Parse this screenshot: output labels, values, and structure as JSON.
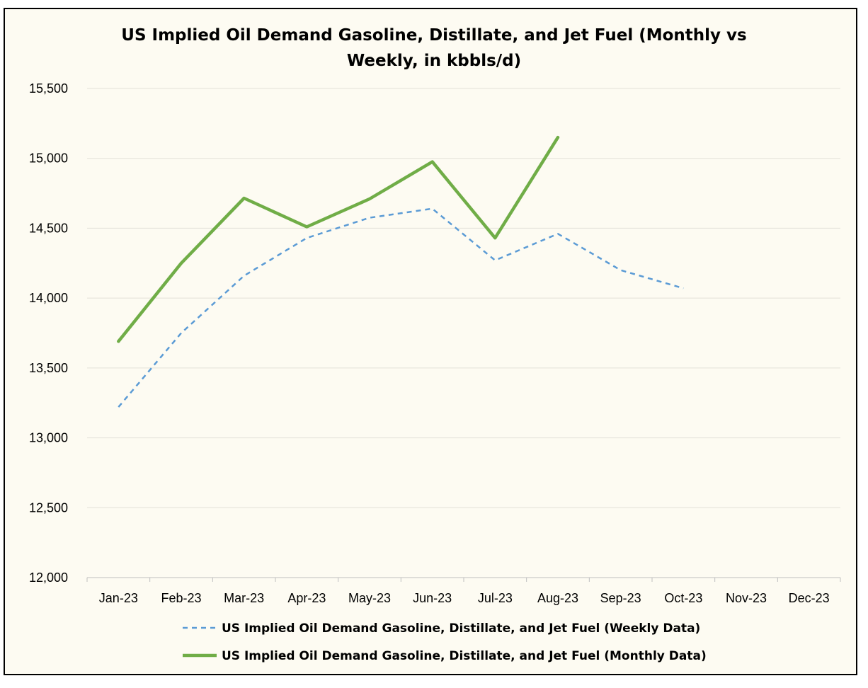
{
  "chart_data": {
    "type": "line",
    "title_lines": [
      "US Implied Oil Demand Gasoline, Distillate, and Jet Fuel (Monthly vs",
      "Weekly, in kbbls/d)"
    ],
    "categories": [
      "Jan-23",
      "Feb-23",
      "Mar-23",
      "Apr-23",
      "May-23",
      "Jun-23",
      "Jul-23",
      "Aug-23",
      "Sep-23",
      "Oct-23",
      "Nov-23",
      "Dec-23"
    ],
    "ylim": [
      12000,
      15500
    ],
    "yticks": [
      12000,
      12500,
      13000,
      13500,
      14000,
      14500,
      15000,
      15500
    ],
    "ytick_labels": [
      "12,000",
      "12,500",
      "13,000",
      "13,500",
      "14,000",
      "14,500",
      "15,000",
      "15,500"
    ],
    "grid": true,
    "legend_position": "bottom",
    "series": [
      {
        "name": "US Implied Oil Demand Gasoline, Distillate, and Jet Fuel (Weekly Data)",
        "style": "dashed",
        "color": "#5b9bd5",
        "values": [
          13220,
          13750,
          14160,
          14430,
          14575,
          14640,
          14270,
          14460,
          14200,
          14070,
          null,
          null
        ]
      },
      {
        "name": "US Implied Oil Demand Gasoline, Distillate, and Jet Fuel (Monthly Data)",
        "style": "solid",
        "color": "#70ad47",
        "values": [
          13690,
          14250,
          14715,
          14510,
          14710,
          14975,
          14430,
          15150,
          null,
          null,
          null,
          null
        ]
      }
    ]
  }
}
